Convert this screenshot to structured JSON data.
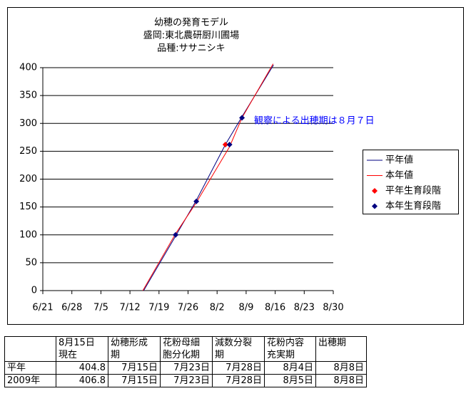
{
  "chart_data": {
    "type": "line",
    "title": [
      "幼穂の発育モデル",
      "盛岡:東北農研厨川圃場",
      "品種:ササニシキ"
    ],
    "xlim": [
      172,
      242
    ],
    "xticks": [
      {
        "value": 172,
        "label": "6/21"
      },
      {
        "value": 179,
        "label": "6/28"
      },
      {
        "value": 186,
        "label": "7/5"
      },
      {
        "value": 193,
        "label": "7/12"
      },
      {
        "value": 200,
        "label": "7/19"
      },
      {
        "value": 207,
        "label": "7/26"
      },
      {
        "value": 214,
        "label": "8/2"
      },
      {
        "value": 221,
        "label": "8/9"
      },
      {
        "value": 228,
        "label": "8/16"
      },
      {
        "value": 235,
        "label": "8/23"
      },
      {
        "value": 242,
        "label": "8/30"
      }
    ],
    "ylim": [
      0,
      400
    ],
    "yticks": [
      0,
      50,
      100,
      150,
      200,
      250,
      300,
      350,
      400
    ],
    "grid": true,
    "legend": "right",
    "series": [
      {
        "name": "平年値",
        "color": "#000080",
        "style": "line",
        "x": [
          196.3,
          204,
          209,
          216,
          220,
          227.6
        ],
        "values": [
          0,
          98,
          162,
          262,
          312,
          404.8
        ]
      },
      {
        "name": "本年値",
        "color": "#ff0000",
        "style": "line",
        "x": [
          196.1,
          204,
          209,
          217,
          220,
          227.5
        ],
        "values": [
          0,
          102,
          158,
          258,
          310,
          406.8
        ]
      },
      {
        "name": "平年生育段階",
        "color": "#ff0000",
        "style": "marker",
        "x": [
          216
        ],
        "values": [
          262
        ]
      },
      {
        "name": "本年生育段階",
        "color": "#000080",
        "style": "marker",
        "x": [
          204,
          209,
          217,
          220
        ],
        "values": [
          100,
          160,
          262,
          310
        ]
      }
    ],
    "annotation": "観察による出穂期は８月７日"
  },
  "table": {
    "header": [
      [
        "8月15日",
        "現在"
      ],
      [
        "幼穂形成",
        "期"
      ],
      [
        "花粉母細",
        "胞分化期"
      ],
      [
        "減数分裂",
        "期"
      ],
      [
        "花粉内容",
        "充実期"
      ],
      [
        "出穂期"
      ]
    ],
    "rows": [
      [
        "平年",
        404.8,
        "7月15日",
        "7月23日",
        "7月28日",
        "8月4日",
        "8月8日"
      ],
      [
        "2009年",
        406.8,
        "7月15日",
        "7月23日",
        "7月28日",
        "8月5日",
        "8月8日"
      ]
    ]
  }
}
